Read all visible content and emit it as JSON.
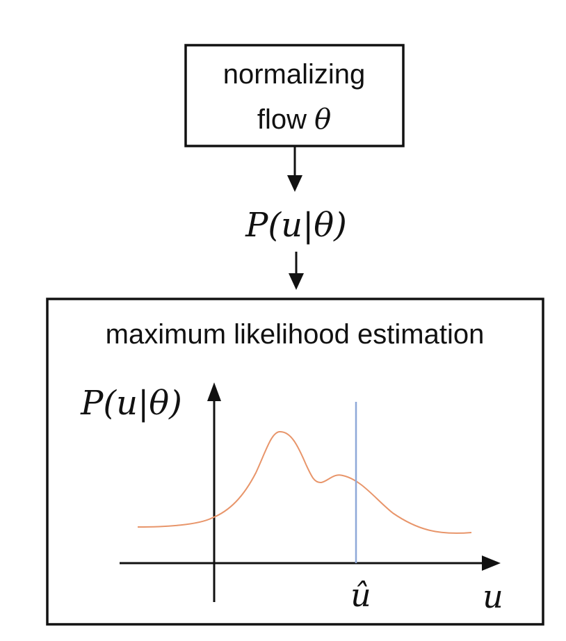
{
  "flow_box": {
    "line1": "normalizing",
    "line2_text": "flow ",
    "line2_symbol": "θ"
  },
  "density_label": {
    "prefix": "P(u|",
    "symbol": "θ",
    "suffix": ")"
  },
  "mle_box": {
    "title": "maximum likelihood estimation",
    "y_axis_label": "P(u|θ)",
    "x_axis_label": "u",
    "marker_label": "û"
  },
  "colors": {
    "curve": "#e8956a",
    "marker": "#8ea8d8",
    "ink": "#111111"
  }
}
